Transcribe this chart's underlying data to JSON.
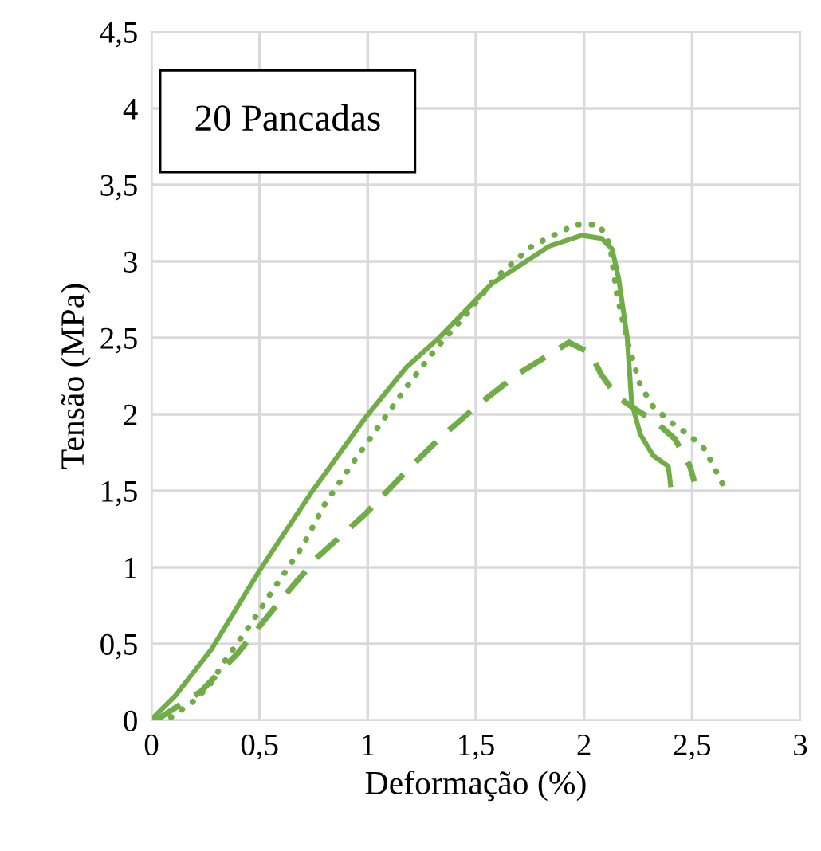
{
  "chart_data": {
    "type": "line",
    "xlabel": "Deformação (%)",
    "ylabel": "Tensão (MPa)",
    "annotations": [
      "20 Pancadas"
    ],
    "xlim": [
      0,
      3
    ],
    "ylim": [
      0,
      4.5
    ],
    "xticks": [
      0,
      {
        "value": 0.5,
        "label": "0,5"
      },
      1,
      {
        "value": 1.5,
        "label": "1,5"
      },
      2,
      {
        "value": 2.5,
        "label": "2,5"
      },
      3
    ],
    "yticks": [
      0,
      {
        "value": 0.5,
        "label": "0,5"
      },
      1,
      {
        "value": 1.5,
        "label": "1,5"
      },
      2,
      {
        "value": 2.5,
        "label": "2,5"
      },
      3,
      {
        "value": 3.5,
        "label": "3,5"
      },
      4,
      {
        "value": 4.5,
        "label": "4,5"
      }
    ],
    "grid": true,
    "legend": false,
    "marker": "none",
    "series": [
      {
        "color": "#70ad47",
        "line_style": "solid",
        "x": [
          0.01,
          0.11,
          0.28,
          0.5,
          0.74,
          0.99,
          1.18,
          1.33,
          1.57,
          1.84,
          1.99,
          2.08,
          2.13,
          2.16,
          2.2,
          2.22,
          2.26,
          2.32,
          2.39,
          2.4
        ],
        "values": [
          0.02,
          0.16,
          0.47,
          0.98,
          1.49,
          1.98,
          2.31,
          2.5,
          2.85,
          3.1,
          3.17,
          3.15,
          3.08,
          2.89,
          2.5,
          2.08,
          1.87,
          1.73,
          1.66,
          1.54
        ]
      },
      {
        "color": "#70ad47",
        "line_style": "dotted",
        "x": [
          0.09,
          0.19,
          0.27,
          0.33,
          0.45,
          0.57,
          0.7,
          0.8,
          0.93,
          1.05,
          1.18,
          1.31,
          1.46,
          1.59,
          1.76,
          1.96,
          2.07,
          2.12,
          2.15,
          2.2,
          2.26,
          2.32,
          2.4,
          2.49,
          2.56,
          2.66
        ],
        "values": [
          0.02,
          0.12,
          0.23,
          0.37,
          0.61,
          0.87,
          1.14,
          1.41,
          1.68,
          1.92,
          2.18,
          2.42,
          2.66,
          2.89,
          3.1,
          3.24,
          3.24,
          3.11,
          2.8,
          2.48,
          2.19,
          2.05,
          1.95,
          1.86,
          1.77,
          1.49
        ]
      },
      {
        "color": "#70ad47",
        "line_style": "dashed",
        "x": [
          0.02,
          0.23,
          0.4,
          0.6,
          0.77,
          0.99,
          1.18,
          1.33,
          1.5,
          1.69,
          1.93,
          2.03,
          2.08,
          2.15,
          2.22,
          2.34,
          2.42,
          2.49,
          2.51
        ],
        "values": [
          0.0,
          0.19,
          0.44,
          0.79,
          1.07,
          1.35,
          1.63,
          1.84,
          2.05,
          2.26,
          2.47,
          2.4,
          2.26,
          2.12,
          2.05,
          1.94,
          1.84,
          1.66,
          1.56
        ]
      }
    ]
  }
}
